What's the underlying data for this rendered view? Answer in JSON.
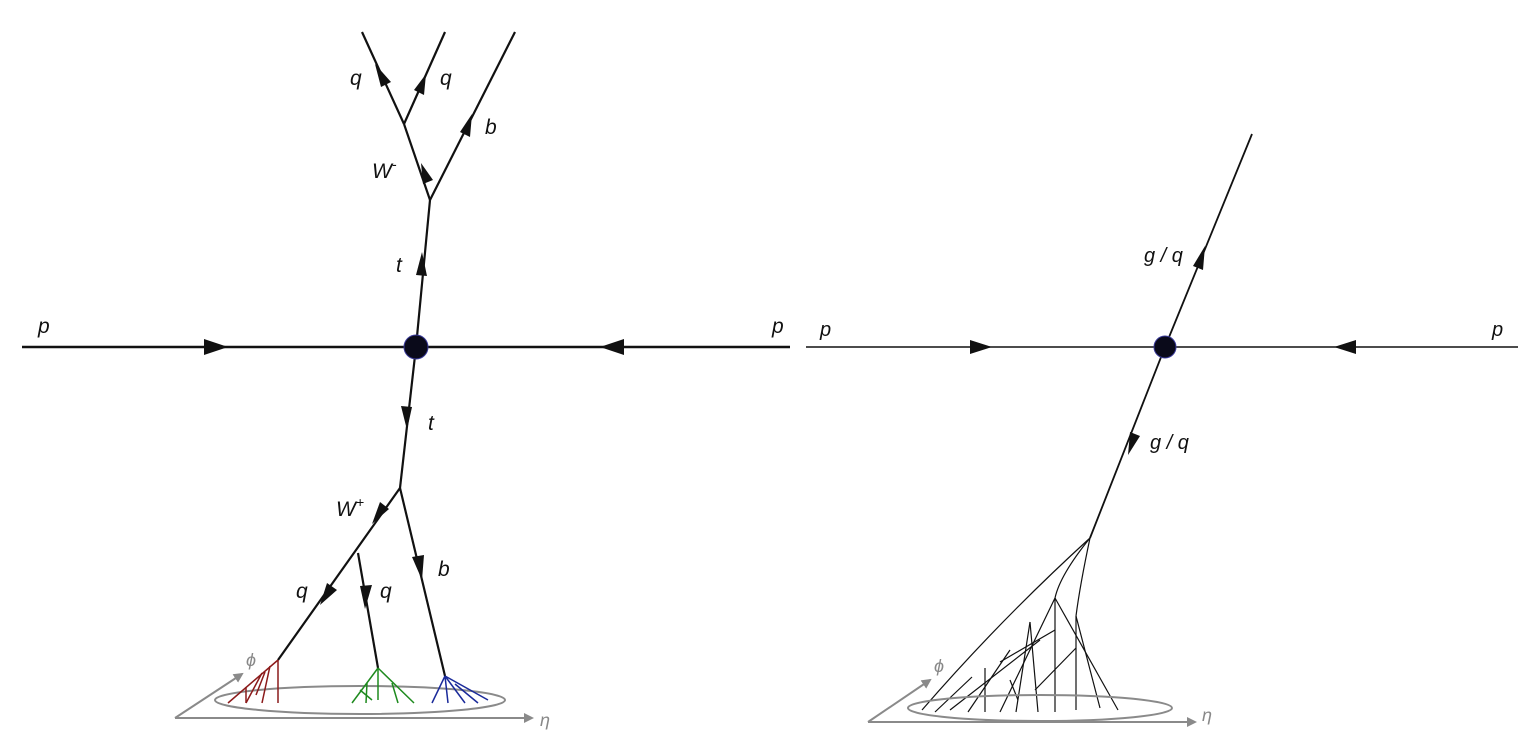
{
  "colors": {
    "line": "#111111",
    "vertex": "#0a0a1a",
    "axis": "#8a8a8a",
    "jet_red": "#8b1a1a",
    "jet_green": "#1e8a1e",
    "jet_blue": "#1a2a9a",
    "jet_black": "#111111"
  },
  "left_diagram": {
    "beam_left": "p",
    "beam_right": "p",
    "top_quark": "t",
    "w_minus": "W",
    "w_minus_sup": "-",
    "q1": "q",
    "q2": "q",
    "b_top": "b",
    "anti_top": "t",
    "w_plus": "W",
    "w_plus_sup": "+",
    "q3": "q",
    "q4": "q",
    "b_bottom": "b",
    "phi": "ϕ",
    "eta": "η"
  },
  "right_diagram": {
    "beam_left": "p",
    "beam_right": "p",
    "upper_parton": "g / q",
    "lower_parton": "g / q",
    "phi": "ϕ",
    "eta": "η"
  }
}
